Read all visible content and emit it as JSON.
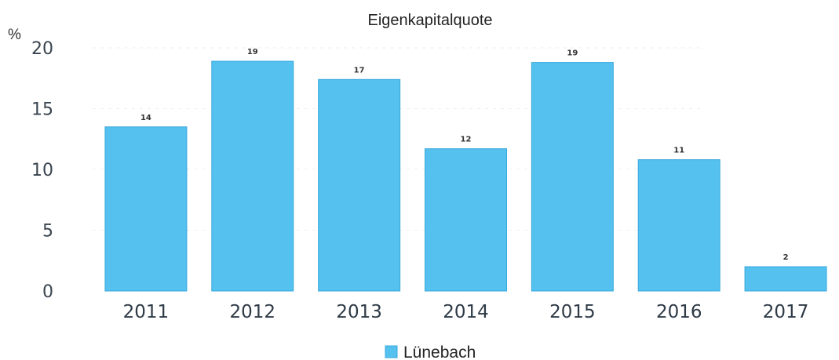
{
  "chart_data": {
    "type": "bar",
    "title": "Eigenkapitalquote",
    "ylabel": "%",
    "xlabel": "",
    "categories": [
      "2011",
      "2012",
      "2013",
      "2014",
      "2015",
      "2016",
      "2017"
    ],
    "series": [
      {
        "name": "Lünebach",
        "values": [
          13.5,
          18.9,
          17.4,
          11.7,
          18.8,
          10.8,
          2.0
        ],
        "labels": [
          "14",
          "19",
          "17",
          "12",
          "19",
          "11",
          "2"
        ],
        "color": "#55c1ef"
      }
    ],
    "ylim": [
      0,
      20
    ],
    "yticks": [
      0,
      5,
      10,
      15,
      20
    ],
    "grid": false,
    "legend": "bottom-center"
  }
}
